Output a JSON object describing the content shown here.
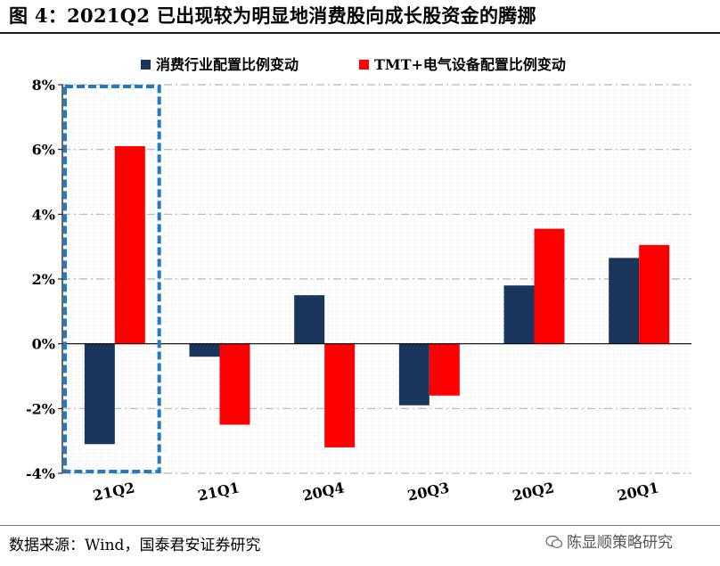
{
  "header": {
    "title": "图 4：2021Q2 已出现较为明显地消费股向成长股资金的腾挪"
  },
  "footer": {
    "source": "数据来源：Wind，国泰君安证券研究",
    "watermark": "陈显顺策略研究"
  },
  "colors": {
    "consumer": "#1b365d",
    "tmt": "#ff0000",
    "highlight": "#1f7ac7",
    "grid": "#b3b3b3"
  },
  "chart_data": {
    "type": "bar",
    "categories": [
      "21Q2",
      "21Q1",
      "20Q4",
      "20Q3",
      "20Q2",
      "20Q1"
    ],
    "series": [
      {
        "name": "消费行业配置比例变动",
        "values": [
          -3.1,
          -0.4,
          1.5,
          -1.9,
          1.8,
          2.65
        ]
      },
      {
        "name": "TMT+电气设备配置比例变动",
        "values": [
          6.1,
          -2.5,
          -3.2,
          -1.6,
          3.55,
          3.05
        ]
      }
    ],
    "yticks": [
      "8%",
      "6%",
      "4%",
      "2%",
      "0%",
      "-2%",
      "-4%"
    ],
    "ylim": [
      -4,
      8
    ],
    "grid": true,
    "legend_position": "top",
    "highlighted_category": "21Q2"
  }
}
